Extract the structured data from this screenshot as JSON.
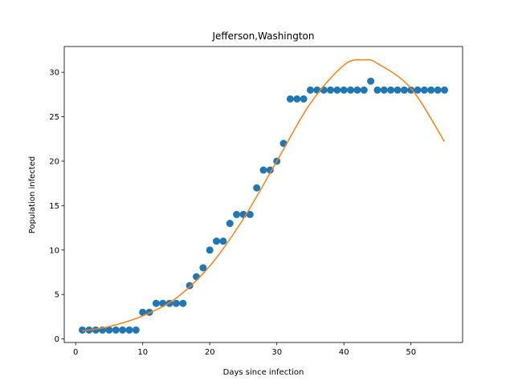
{
  "chart_data": {
    "type": "scatter",
    "title": "Jefferson,Washington",
    "xlabel": "Days since infection",
    "ylabel": "Population infected",
    "xlim": [
      -1.7,
      57.7
    ],
    "ylim": [
      -0.4,
      32.9
    ],
    "xticks": [
      0,
      10,
      20,
      30,
      40,
      50
    ],
    "yticks": [
      0,
      5,
      10,
      15,
      20,
      25,
      30
    ],
    "grid": false,
    "series": [
      {
        "kind": "scatter",
        "color": "#1f77b4",
        "x": [
          1,
          2,
          3,
          4,
          5,
          6,
          7,
          8,
          9,
          10,
          11,
          12,
          13,
          14,
          15,
          16,
          17,
          18,
          19,
          20,
          21,
          22,
          23,
          24,
          25,
          26,
          27,
          28,
          29,
          30,
          31,
          32,
          33,
          34,
          35,
          36,
          37,
          38,
          39,
          40,
          41,
          42,
          43,
          44,
          45,
          46,
          47,
          48,
          49,
          50,
          51,
          52,
          53,
          54,
          55
        ],
        "y": [
          1,
          1,
          1,
          1,
          1,
          1,
          1,
          1,
          1,
          3,
          3,
          4,
          4,
          4,
          4,
          4,
          6,
          7,
          8,
          10,
          11,
          11,
          13,
          14,
          14,
          14,
          17,
          19,
          19,
          20,
          22,
          27,
          27,
          27,
          28,
          28,
          28,
          28,
          28,
          28,
          28,
          28,
          28,
          29,
          28,
          28,
          28,
          28,
          28,
          28,
          28,
          28,
          28,
          28,
          28
        ]
      },
      {
        "kind": "line",
        "color": "#ff7f0e",
        "x": [
          1,
          5,
          10,
          15,
          20,
          25,
          30,
          35,
          40,
          43,
          45,
          50,
          55
        ],
        "y": [
          0.9,
          1.4,
          2.6,
          4.6,
          8.2,
          13.5,
          20.0,
          26.5,
          30.8,
          31.4,
          31.0,
          28.2,
          22.2
        ]
      }
    ]
  }
}
